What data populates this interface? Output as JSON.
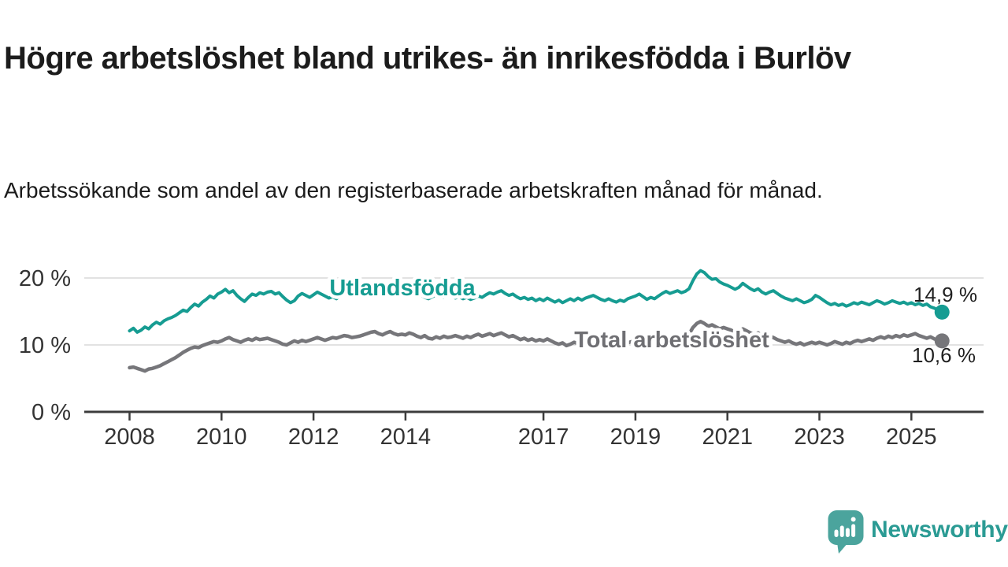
{
  "header": {
    "title": "Högre arbetslöshet bland utrikes- än inrikesfödda i Burlöv",
    "subtitle": "Arbetssökande som andel av den registerbaserade arbetskraften månad för månad."
  },
  "chart_data": {
    "type": "line",
    "title": "",
    "xlabel": "",
    "ylabel": "",
    "x_start_year": 2008,
    "x_start_month": 1,
    "x_end_year": 2025,
    "x_end_month": 9,
    "x_tick_years": [
      2008,
      2010,
      2012,
      2014,
      2017,
      2019,
      2021,
      2023,
      2025
    ],
    "x_tick_labels": [
      "2008",
      "2010",
      "2012",
      "2014",
      "2017",
      "2019",
      "2021",
      "2023",
      "2025"
    ],
    "y_ticks": [
      {
        "value": 0,
        "label": "0 %"
      },
      {
        "value": 10,
        "label": "10 %"
      },
      {
        "value": 20,
        "label": "20 %"
      }
    ],
    "ylim": [
      0,
      22
    ],
    "grid": "horizontal",
    "grid_color": "#D8D8D8",
    "axis_color": "#3C3C3C",
    "tick_label_color": "#333333",
    "legend_position": "inline-labels",
    "series": [
      {
        "name": "Utlandsfödda",
        "color": "#169C92",
        "label_color": "#169C92",
        "end_label": "14,9 %",
        "end_value": 14.9,
        "values": [
          12.1,
          12.5,
          11.9,
          12.2,
          12.7,
          12.4,
          13.0,
          13.4,
          13.1,
          13.6,
          13.9,
          14.1,
          14.4,
          14.8,
          15.2,
          15.0,
          15.6,
          16.1,
          15.8,
          16.4,
          16.8,
          17.3,
          17.0,
          17.6,
          17.9,
          18.3,
          17.8,
          18.1,
          17.4,
          16.9,
          16.5,
          17.1,
          17.6,
          17.4,
          17.8,
          17.6,
          17.9,
          18.0,
          17.6,
          17.8,
          17.2,
          16.7,
          16.3,
          16.6,
          17.3,
          17.7,
          17.4,
          17.1,
          17.5,
          17.9,
          17.6,
          17.3,
          17.0,
          17.2,
          16.9,
          17.4,
          17.7,
          18.0,
          17.6,
          17.3,
          17.5,
          17.8,
          18.1,
          18.4,
          18.2,
          17.8,
          17.5,
          17.9,
          18.2,
          17.9,
          17.6,
          17.8,
          17.7,
          18.0,
          17.6,
          17.3,
          17.5,
          17.1,
          16.9,
          17.2,
          17.5,
          17.3,
          17.1,
          17.4,
          17.3,
          17.0,
          17.2,
          16.9,
          17.1,
          16.8,
          17.0,
          17.3,
          17.1,
          17.5,
          17.8,
          17.6,
          17.9,
          18.1,
          17.7,
          17.4,
          17.6,
          17.2,
          16.9,
          17.1,
          16.8,
          17.0,
          16.6,
          16.9,
          16.6,
          17.0,
          16.7,
          16.4,
          16.7,
          16.3,
          16.6,
          16.9,
          16.6,
          17.0,
          16.7,
          17.0,
          17.2,
          17.4,
          17.1,
          16.8,
          16.6,
          16.9,
          16.6,
          16.4,
          16.7,
          16.5,
          16.9,
          17.1,
          17.3,
          17.6,
          17.2,
          16.8,
          17.1,
          16.9,
          17.3,
          17.7,
          18.0,
          17.7,
          17.9,
          18.1,
          17.8,
          18.0,
          18.4,
          19.6,
          20.6,
          21.1,
          20.8,
          20.2,
          19.8,
          19.9,
          19.4,
          19.1,
          18.9,
          18.6,
          18.3,
          18.6,
          19.2,
          18.8,
          18.4,
          18.1,
          18.4,
          17.9,
          17.6,
          17.9,
          18.1,
          17.7,
          17.3,
          17.0,
          16.8,
          16.6,
          16.9,
          16.6,
          16.3,
          16.5,
          16.8,
          17.4,
          17.1,
          16.7,
          16.3,
          16.0,
          16.2,
          15.9,
          16.1,
          15.8,
          16.0,
          16.3,
          16.1,
          16.4,
          16.2,
          16.0,
          16.3,
          16.6,
          16.4,
          16.1,
          16.3,
          16.6,
          16.4,
          16.2,
          16.4,
          16.1,
          16.3,
          16.0,
          16.2,
          15.9,
          16.1,
          15.7,
          15.5,
          15.2,
          14.9
        ]
      },
      {
        "name": "Total arbetslöshet",
        "color": "#76767A",
        "label_color": "#6F6F73",
        "end_label": "10,6 %",
        "end_value": 10.6,
        "values": [
          6.6,
          6.7,
          6.5,
          6.3,
          6.1,
          6.4,
          6.5,
          6.7,
          6.9,
          7.2,
          7.5,
          7.8,
          8.1,
          8.5,
          8.9,
          9.2,
          9.5,
          9.7,
          9.6,
          9.9,
          10.1,
          10.3,
          10.5,
          10.4,
          10.6,
          10.9,
          11.1,
          10.8,
          10.6,
          10.4,
          10.7,
          10.9,
          10.7,
          11.0,
          10.8,
          10.9,
          11.0,
          10.8,
          10.6,
          10.4,
          10.1,
          10.0,
          10.3,
          10.6,
          10.4,
          10.7,
          10.5,
          10.7,
          10.9,
          11.1,
          10.9,
          10.7,
          10.9,
          11.1,
          11.0,
          11.2,
          11.4,
          11.3,
          11.1,
          11.2,
          11.3,
          11.5,
          11.7,
          11.9,
          12.0,
          11.7,
          11.5,
          11.8,
          12.0,
          11.7,
          11.5,
          11.6,
          11.5,
          11.8,
          11.6,
          11.3,
          11.1,
          11.4,
          11.0,
          10.9,
          11.2,
          11.0,
          11.3,
          11.1,
          11.2,
          11.4,
          11.2,
          11.0,
          11.3,
          11.1,
          11.4,
          11.6,
          11.3,
          11.5,
          11.7,
          11.4,
          11.6,
          11.8,
          11.5,
          11.2,
          11.4,
          11.1,
          10.8,
          11.0,
          10.7,
          10.9,
          10.6,
          10.8,
          10.6,
          10.9,
          10.6,
          10.3,
          10.1,
          10.3,
          9.9,
          10.1,
          10.4,
          10.2,
          10.0,
          10.2,
          10.4,
          10.6,
          10.3,
          10.1,
          10.3,
          10.0,
          10.2,
          10.4,
          10.2,
          10.5,
          10.3,
          10.5,
          10.3,
          10.6,
          10.4,
          10.2,
          10.4,
          10.1,
          10.3,
          10.6,
          10.8,
          10.6,
          10.8,
          11.0,
          10.9,
          11.1,
          11.6,
          12.6,
          13.2,
          13.5,
          13.2,
          12.8,
          13.0,
          12.7,
          12.4,
          12.6,
          12.4,
          12.2,
          11.9,
          12.1,
          12.4,
          12.1,
          11.8,
          11.5,
          11.8,
          11.4,
          11.1,
          11.3,
          11.1,
          10.8,
          10.6,
          10.4,
          10.6,
          10.3,
          10.1,
          10.3,
          10.0,
          10.2,
          10.4,
          10.2,
          10.4,
          10.2,
          10.0,
          10.2,
          10.5,
          10.3,
          10.1,
          10.4,
          10.2,
          10.5,
          10.7,
          10.5,
          10.7,
          10.9,
          10.7,
          11.0,
          11.2,
          11.0,
          11.3,
          11.1,
          11.4,
          11.2,
          11.5,
          11.3,
          11.5,
          11.7,
          11.4,
          11.2,
          11.0,
          11.2,
          10.9,
          10.7,
          10.6
        ]
      }
    ]
  },
  "logo": {
    "text": "Newsworthy",
    "text_color": "#2B9B94",
    "mark_color": "#4BA49D",
    "mark_icon": "speech-bubble-bar-chart-icon"
  }
}
